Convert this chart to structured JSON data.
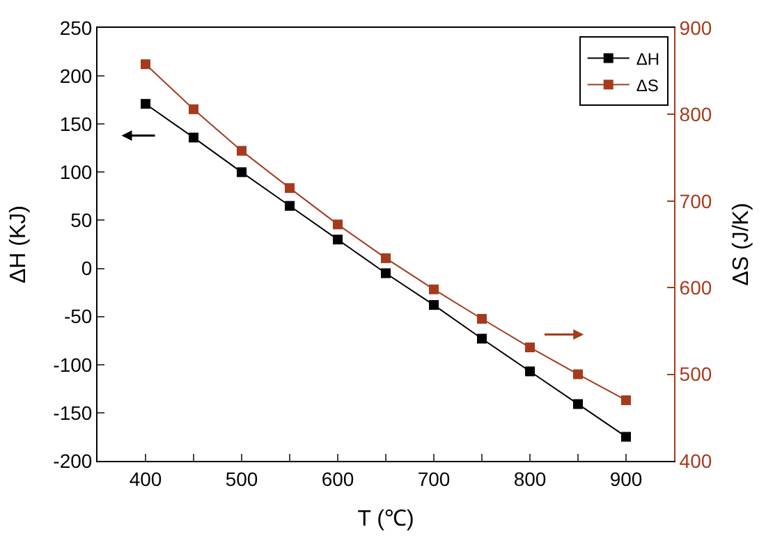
{
  "chart_data": {
    "type": "line",
    "xlabel": "T (℃)",
    "ylabel": "ΔH (KJ)",
    "y2label": "ΔS (J/K)",
    "x": [
      400,
      450,
      500,
      550,
      600,
      650,
      700,
      750,
      800,
      850,
      900
    ],
    "series": [
      {
        "name": "ΔH",
        "color": "#000000",
        "values": [
          171,
          136,
          100,
          65,
          30,
          -5,
          -38,
          -73,
          -107,
          -141,
          -175
        ]
      },
      {
        "name": "ΔS",
        "color": "#a63a1c",
        "axis": "y2",
        "values": [
          858,
          806,
          758,
          715,
          673,
          634,
          598,
          564,
          531,
          500,
          470
        ]
      }
    ],
    "xlim": [
      350,
      950
    ],
    "xticks": [
      400,
      500,
      600,
      700,
      800,
      900
    ],
    "ylim": [
      -200,
      250
    ],
    "yticks": [
      -200,
      -150,
      -100,
      -50,
      0,
      50,
      100,
      150,
      200,
      250
    ],
    "y2lim": [
      400,
      900
    ],
    "y2ticks": [
      400,
      500,
      600,
      700,
      800,
      900
    ],
    "legend": "top right",
    "marker": "square",
    "line_style": "solid"
  }
}
